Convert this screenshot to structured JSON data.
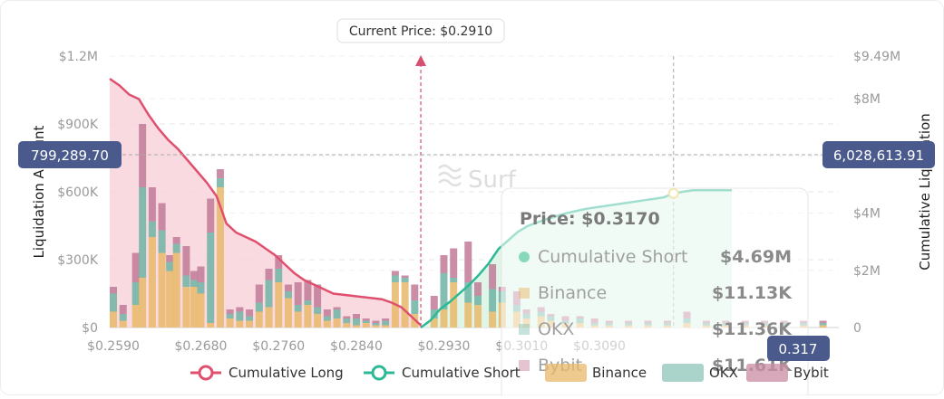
{
  "current_price_label": "Current Price: $0.2910",
  "watermark": "Surf",
  "crosshair": {
    "left_value": "799,289.70",
    "right_value": "6,028,613.91",
    "x_value": "0.317"
  },
  "tooltip": {
    "price_label": "Price: $0.3170",
    "rows": [
      {
        "label": "Cumulative Short",
        "value": "$4.69M",
        "color": "#5cc9a0"
      },
      {
        "label": "Binance",
        "value": "$11.13K",
        "color": "#e8b86a"
      },
      {
        "label": "OKX",
        "value": "$11.36K",
        "color": "#8ec5b8"
      },
      {
        "label": "Bybit",
        "value": "$11.61K",
        "color": "#c98aa3"
      }
    ]
  },
  "colors": {
    "long_line": "#e0506e",
    "long_fill": "#f9d3dc",
    "short_line": "#2db995",
    "short_fill": "#dcf4e6",
    "binance": "#e8b86a",
    "okx": "#6fb3a4",
    "bybit": "#c17a98",
    "current_price": "#d94f70",
    "badge": "#4a5a8c"
  },
  "chart_data": {
    "type": "bar",
    "title": "",
    "ylabel": "Liquidation Amount",
    "y2label": "Cumulative Liquidation",
    "xlim": [
      0.259,
      0.334
    ],
    "ylim": [
      0,
      1.2
    ],
    "y2lim": [
      0,
      9.49
    ],
    "x_ticks": [
      "$0.2590",
      "$0.2680",
      "$0.2760",
      "$0.2840",
      "$0.2930",
      "$0.3010",
      "$0.3090"
    ],
    "x_tick_values": [
      0.259,
      0.268,
      0.276,
      0.284,
      0.293,
      0.301,
      0.309
    ],
    "y_ticks": [
      "$0",
      "$300K",
      "$600K",
      "$900K",
      "$1.2M"
    ],
    "y_tick_values": [
      0,
      0.3,
      0.6,
      0.9,
      1.2
    ],
    "y2_ticks": [
      "0",
      "$2M",
      "$4M",
      "$6M",
      "$8M",
      "$9.49M"
    ],
    "y2_tick_values": [
      0,
      2,
      4,
      6,
      8,
      9.49
    ],
    "legend": [
      {
        "name": "Cumulative Long",
        "kind": "line",
        "color": "#e0506e"
      },
      {
        "name": "Cumulative Short",
        "kind": "line",
        "color": "#2db995"
      },
      {
        "name": "Binance",
        "kind": "box",
        "color": "#e8b86a"
      },
      {
        "name": "OKX",
        "kind": "box",
        "color": "#8ec5b8"
      },
      {
        "name": "Bybit",
        "kind": "box",
        "color": "#c98aa3"
      }
    ],
    "legend_position": "bottom",
    "current_price": 0.291,
    "crosshair_x": 0.317,
    "bars_binance": [
      [
        0.259,
        0.07
      ],
      [
        0.26,
        0.03
      ],
      [
        0.2613,
        0.1
      ],
      [
        0.262,
        0.22
      ],
      [
        0.263,
        0.4
      ],
      [
        0.264,
        0.33
      ],
      [
        0.2648,
        0.25
      ],
      [
        0.2655,
        0.33
      ],
      [
        0.2665,
        0.18
      ],
      [
        0.2673,
        0.18
      ],
      [
        0.268,
        0.15
      ],
      [
        0.269,
        0.02
      ],
      [
        0.27,
        0.62
      ],
      [
        0.271,
        0.04
      ],
      [
        0.272,
        0.03
      ],
      [
        0.273,
        0.03
      ],
      [
        0.274,
        0.07
      ],
      [
        0.275,
        0.09
      ],
      [
        0.276,
        0.2
      ],
      [
        0.277,
        0.13
      ],
      [
        0.278,
        0.07
      ],
      [
        0.279,
        0.1
      ],
      [
        0.28,
        0.06
      ],
      [
        0.281,
        0.03
      ],
      [
        0.282,
        0.04
      ],
      [
        0.283,
        0.02
      ],
      [
        0.284,
        0.01
      ],
      [
        0.285,
        0.02
      ],
      [
        0.286,
        0.01
      ],
      [
        0.287,
        0.01
      ],
      [
        0.288,
        0.2
      ],
      [
        0.289,
        0.2
      ],
      [
        0.29,
        0.06
      ],
      [
        0.292,
        0.04
      ],
      [
        0.293,
        0.08
      ],
      [
        0.294,
        0.2
      ],
      [
        0.2955,
        0.11
      ],
      [
        0.2965,
        0.1
      ],
      [
        0.298,
        0.07
      ],
      [
        0.299,
        0.11
      ],
      [
        0.3005,
        0.07
      ],
      [
        0.3015,
        0.04
      ],
      [
        0.303,
        0.05
      ],
      [
        0.304,
        0.03
      ],
      [
        0.3055,
        0.02
      ],
      [
        0.307,
        0.02
      ],
      [
        0.3085,
        0.01
      ],
      [
        0.31,
        0.01
      ],
      [
        0.312,
        0.01
      ],
      [
        0.314,
        0.01
      ],
      [
        0.316,
        0.01
      ],
      [
        0.318,
        0.02
      ],
      [
        0.32,
        0.01
      ],
      [
        0.322,
        0.01
      ],
      [
        0.324,
        0.01
      ],
      [
        0.326,
        0.01
      ],
      [
        0.328,
        0.01
      ],
      [
        0.33,
        0.01
      ],
      [
        0.332,
        0.01
      ]
    ],
    "bars_okx": [
      [
        0.259,
        0.08
      ],
      [
        0.26,
        0.03
      ],
      [
        0.2613,
        0.1
      ],
      [
        0.262,
        0.4
      ],
      [
        0.263,
        0.07
      ],
      [
        0.264,
        0.1
      ],
      [
        0.2648,
        0.04
      ],
      [
        0.2655,
        0.04
      ],
      [
        0.2665,
        0.05
      ],
      [
        0.2673,
        0.03
      ],
      [
        0.268,
        0.05
      ],
      [
        0.269,
        0.4
      ],
      [
        0.27,
        0.04
      ],
      [
        0.271,
        0.02
      ],
      [
        0.272,
        0.04
      ],
      [
        0.273,
        0.02
      ],
      [
        0.274,
        0.04
      ],
      [
        0.275,
        0.12
      ],
      [
        0.276,
        0.06
      ],
      [
        0.277,
        0.03
      ],
      [
        0.278,
        0.03
      ],
      [
        0.279,
        0.02
      ],
      [
        0.28,
        0.03
      ],
      [
        0.281,
        0.02
      ],
      [
        0.282,
        0.04
      ],
      [
        0.283,
        0.02
      ],
      [
        0.284,
        0.03
      ],
      [
        0.285,
        0.01
      ],
      [
        0.286,
        0.01
      ],
      [
        0.287,
        0.02
      ],
      [
        0.288,
        0.03
      ],
      [
        0.289,
        0.02
      ],
      [
        0.29,
        0.06
      ],
      [
        0.292,
        0.04
      ],
      [
        0.293,
        0.16
      ],
      [
        0.294,
        0.02
      ],
      [
        0.2955,
        0.09
      ],
      [
        0.2965,
        0.04
      ],
      [
        0.298,
        0.1
      ],
      [
        0.299,
        0.05
      ],
      [
        0.3005,
        0.03
      ],
      [
        0.3015,
        0.02
      ],
      [
        0.303,
        0.02
      ],
      [
        0.304,
        0.02
      ],
      [
        0.3055,
        0.01
      ],
      [
        0.307,
        0.02
      ],
      [
        0.3085,
        0.01
      ],
      [
        0.31,
        0.01
      ],
      [
        0.312,
        0.01
      ],
      [
        0.314,
        0.01
      ],
      [
        0.316,
        0.01
      ],
      [
        0.318,
        0.02
      ],
      [
        0.32,
        0.01
      ],
      [
        0.322,
        0.01
      ],
      [
        0.324,
        0.01
      ],
      [
        0.326,
        0.01
      ],
      [
        0.328,
        0.01
      ],
      [
        0.33,
        0.01
      ],
      [
        0.332,
        0.01
      ]
    ],
    "bars_bybit": [
      [
        0.259,
        0.03
      ],
      [
        0.26,
        0.04
      ],
      [
        0.2613,
        0.13
      ],
      [
        0.262,
        0.28
      ],
      [
        0.263,
        0.15
      ],
      [
        0.264,
        0.12
      ],
      [
        0.2648,
        0.03
      ],
      [
        0.2655,
        0.03
      ],
      [
        0.2665,
        0.13
      ],
      [
        0.2673,
        0.04
      ],
      [
        0.268,
        0.07
      ],
      [
        0.269,
        0.15
      ],
      [
        0.27,
        0.04
      ],
      [
        0.271,
        0.02
      ],
      [
        0.272,
        0.02
      ],
      [
        0.273,
        0.03
      ],
      [
        0.274,
        0.08
      ],
      [
        0.275,
        0.05
      ],
      [
        0.276,
        0.06
      ],
      [
        0.277,
        0.03
      ],
      [
        0.278,
        0.1
      ],
      [
        0.279,
        0.09
      ],
      [
        0.28,
        0.1
      ],
      [
        0.281,
        0.03
      ],
      [
        0.282,
        0.01
      ],
      [
        0.283,
        0.01
      ],
      [
        0.284,
        0.02
      ],
      [
        0.285,
        0.01
      ],
      [
        0.286,
        0.01
      ],
      [
        0.287,
        0.01
      ],
      [
        0.288,
        0.02
      ],
      [
        0.289,
        0.01
      ],
      [
        0.29,
        0.07
      ],
      [
        0.292,
        0.06
      ],
      [
        0.293,
        0.08
      ],
      [
        0.294,
        0.13
      ],
      [
        0.2955,
        0.18
      ],
      [
        0.2965,
        0.06
      ],
      [
        0.298,
        0.11
      ],
      [
        0.299,
        0.02
      ],
      [
        0.3005,
        0.06
      ],
      [
        0.3015,
        0.02
      ],
      [
        0.303,
        0.02
      ],
      [
        0.304,
        0.01
      ],
      [
        0.3055,
        0.02
      ],
      [
        0.307,
        0.01
      ],
      [
        0.3085,
        0.02
      ],
      [
        0.31,
        0.01
      ],
      [
        0.312,
        0.01
      ],
      [
        0.314,
        0.01
      ],
      [
        0.316,
        0.01
      ],
      [
        0.318,
        0.03
      ],
      [
        0.32,
        0.01
      ],
      [
        0.322,
        0.01
      ],
      [
        0.324,
        0.01
      ],
      [
        0.326,
        0.01
      ],
      [
        0.328,
        0.01
      ],
      [
        0.33,
        0.01
      ],
      [
        0.332,
        0.01
      ]
    ],
    "cumulative_long": [
      [
        0.259,
        1.1
      ],
      [
        0.26,
        1.07
      ],
      [
        0.261,
        1.03
      ],
      [
        0.262,
        1.01
      ],
      [
        0.263,
        0.94
      ],
      [
        0.264,
        0.88
      ],
      [
        0.265,
        0.83
      ],
      [
        0.266,
        0.79
      ],
      [
        0.267,
        0.74
      ],
      [
        0.268,
        0.69
      ],
      [
        0.269,
        0.64
      ],
      [
        0.27,
        0.58
      ],
      [
        0.271,
        0.46
      ],
      [
        0.272,
        0.42
      ],
      [
        0.273,
        0.4
      ],
      [
        0.274,
        0.38
      ],
      [
        0.275,
        0.35
      ],
      [
        0.276,
        0.32
      ],
      [
        0.277,
        0.28
      ],
      [
        0.278,
        0.24
      ],
      [
        0.279,
        0.21
      ],
      [
        0.28,
        0.19
      ],
      [
        0.281,
        0.17
      ],
      [
        0.282,
        0.15
      ],
      [
        0.283,
        0.145
      ],
      [
        0.284,
        0.14
      ],
      [
        0.285,
        0.135
      ],
      [
        0.286,
        0.13
      ],
      [
        0.287,
        0.125
      ],
      [
        0.288,
        0.11
      ],
      [
        0.289,
        0.09
      ],
      [
        0.29,
        0.05
      ],
      [
        0.291,
        0.01
      ]
    ],
    "cumulative_short": [
      [
        0.291,
        0.0
      ],
      [
        0.292,
        0.25
      ],
      [
        0.293,
        0.65
      ],
      [
        0.294,
        0.9
      ],
      [
        0.295,
        1.2
      ],
      [
        0.296,
        1.5
      ],
      [
        0.297,
        1.85
      ],
      [
        0.298,
        2.25
      ],
      [
        0.299,
        2.75
      ],
      [
        0.3,
        3.05
      ],
      [
        0.301,
        3.35
      ],
      [
        0.302,
        3.55
      ],
      [
        0.304,
        3.8
      ],
      [
        0.306,
        4.0
      ],
      [
        0.308,
        4.15
      ],
      [
        0.31,
        4.25
      ],
      [
        0.312,
        4.35
      ],
      [
        0.314,
        4.45
      ],
      [
        0.316,
        4.55
      ],
      [
        0.317,
        4.69
      ],
      [
        0.318,
        4.75
      ],
      [
        0.319,
        4.8
      ],
      [
        0.32,
        4.8
      ]
    ]
  }
}
